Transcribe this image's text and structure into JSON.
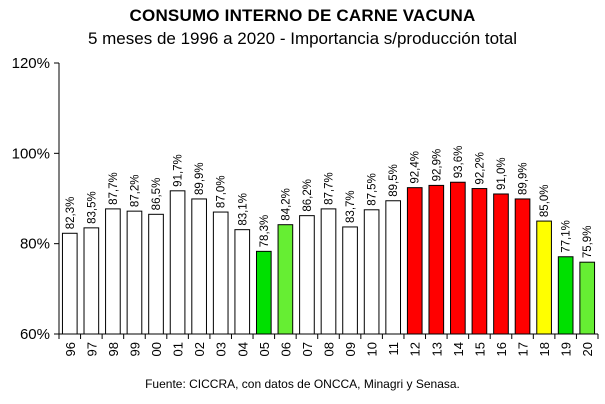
{
  "chart_data": {
    "type": "bar",
    "title": "CONSUMO INTERNO DE CARNE VACUNA",
    "subtitle": "5 meses de 1996 a 2020 - Importancia s/producción total",
    "source": "Fuente: CICCRA, con datos de ONCCA, Minagri y Senasa.",
    "categories": [
      "96",
      "97",
      "98",
      "99",
      "00",
      "01",
      "02",
      "03",
      "04",
      "05",
      "06",
      "07",
      "08",
      "09",
      "10",
      "11",
      "12",
      "13",
      "14",
      "15",
      "16",
      "17",
      "18",
      "19",
      "20"
    ],
    "values": [
      82.3,
      83.5,
      87.7,
      87.2,
      86.5,
      91.7,
      89.9,
      87.0,
      83.1,
      78.3,
      84.2,
      86.2,
      87.7,
      83.7,
      87.5,
      89.5,
      92.4,
      92.9,
      93.6,
      92.2,
      91.0,
      89.9,
      85.0,
      77.1,
      75.9
    ],
    "data_labels": [
      "82,3%",
      "83,5%",
      "87,7%",
      "87,2%",
      "86,5%",
      "91,7%",
      "89,9%",
      "87,0%",
      "83,1%",
      "78,3%",
      "84,2%",
      "86,2%",
      "87,7%",
      "83,7%",
      "87,5%",
      "89,5%",
      "92,4%",
      "92,9%",
      "93,6%",
      "92,2%",
      "91,0%",
      "89,9%",
      "85,0%",
      "77,1%",
      "75,9%"
    ],
    "bar_colors": [
      "#ffffff",
      "#ffffff",
      "#ffffff",
      "#ffffff",
      "#ffffff",
      "#ffffff",
      "#ffffff",
      "#ffffff",
      "#ffffff",
      "#00e000",
      "#66ee33",
      "#ffffff",
      "#ffffff",
      "#ffffff",
      "#ffffff",
      "#ffffff",
      "#ff0000",
      "#ff0000",
      "#ff0000",
      "#ff0000",
      "#ff0000",
      "#ff0000",
      "#ffff00",
      "#00e000",
      "#66ee33"
    ],
    "ylim": [
      60,
      120
    ],
    "yticks": [
      60,
      80,
      100,
      120
    ],
    "ytick_labels": [
      "60%",
      "80%",
      "100%",
      "120%"
    ],
    "grid": false,
    "legend": "none"
  }
}
